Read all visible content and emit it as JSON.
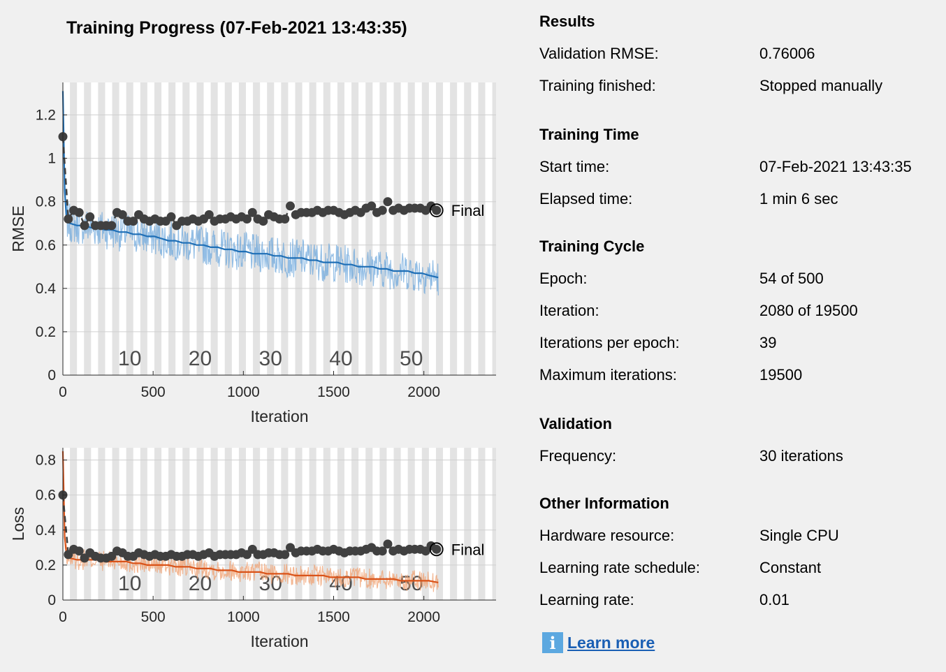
{
  "title": "Training Progress (07-Feb-2021 13:43:35)",
  "chart_data": [
    {
      "type": "line",
      "ylabel": "RMSE",
      "xlabel": "Iteration",
      "xlim": [
        0,
        2400
      ],
      "ylim": [
        0,
        1.35
      ],
      "xticks": [
        "0",
        "500",
        "1000",
        "1500",
        "2000"
      ],
      "yticks": [
        "0",
        "0.2",
        "0.4",
        "0.6",
        "0.8",
        "1",
        "1.2"
      ],
      "epoch_labels": [
        "10",
        "20",
        "30",
        "40",
        "50"
      ],
      "iterations_per_epoch": 39,
      "total_iterations": 2080,
      "final_label": "Final",
      "series": [
        {
          "role": "training-smoothed",
          "color": "#1f6fb6",
          "x": [
            0,
            10,
            20,
            39,
            78,
            117,
            156,
            195,
            234,
            273,
            312,
            351,
            390,
            429,
            468,
            507,
            546,
            585,
            624,
            663,
            702,
            741,
            780,
            819,
            858,
            897,
            936,
            975,
            1014,
            1053,
            1092,
            1131,
            1170,
            1209,
            1248,
            1287,
            1326,
            1365,
            1404,
            1443,
            1482,
            1521,
            1560,
            1599,
            1638,
            1677,
            1716,
            1755,
            1794,
            1833,
            1872,
            1911,
            1950,
            1989,
            2028,
            2080
          ],
          "y": [
            1.31,
            0.85,
            0.72,
            0.7,
            0.69,
            0.69,
            0.68,
            0.68,
            0.67,
            0.67,
            0.66,
            0.66,
            0.65,
            0.65,
            0.64,
            0.64,
            0.63,
            0.62,
            0.62,
            0.61,
            0.61,
            0.6,
            0.6,
            0.59,
            0.59,
            0.58,
            0.58,
            0.57,
            0.57,
            0.56,
            0.56,
            0.56,
            0.55,
            0.55,
            0.54,
            0.54,
            0.54,
            0.53,
            0.53,
            0.52,
            0.52,
            0.52,
            0.51,
            0.51,
            0.5,
            0.5,
            0.5,
            0.49,
            0.49,
            0.48,
            0.48,
            0.48,
            0.47,
            0.47,
            0.46,
            0.45
          ]
        },
        {
          "role": "validation",
          "color": "#404040",
          "x": [
            0,
            30,
            60,
            90,
            120,
            150,
            180,
            210,
            240,
            270,
            300,
            330,
            360,
            390,
            420,
            450,
            480,
            510,
            540,
            570,
            600,
            630,
            660,
            690,
            720,
            750,
            780,
            810,
            840,
            870,
            900,
            930,
            960,
            990,
            1020,
            1050,
            1080,
            1110,
            1140,
            1170,
            1200,
            1230,
            1260,
            1290,
            1320,
            1350,
            1380,
            1410,
            1440,
            1470,
            1500,
            1530,
            1560,
            1590,
            1620,
            1650,
            1680,
            1710,
            1740,
            1770,
            1800,
            1830,
            1860,
            1890,
            1920,
            1950,
            1980,
            2010,
            2040,
            2070
          ],
          "y": [
            1.1,
            0.72,
            0.76,
            0.75,
            0.69,
            0.73,
            0.69,
            0.69,
            0.69,
            0.69,
            0.75,
            0.74,
            0.71,
            0.71,
            0.74,
            0.72,
            0.71,
            0.72,
            0.71,
            0.71,
            0.73,
            0.69,
            0.71,
            0.71,
            0.72,
            0.71,
            0.72,
            0.74,
            0.71,
            0.72,
            0.72,
            0.73,
            0.72,
            0.73,
            0.72,
            0.75,
            0.72,
            0.71,
            0.74,
            0.73,
            0.72,
            0.72,
            0.78,
            0.74,
            0.75,
            0.75,
            0.75,
            0.76,
            0.75,
            0.76,
            0.76,
            0.75,
            0.74,
            0.75,
            0.76,
            0.75,
            0.77,
            0.78,
            0.75,
            0.76,
            0.8,
            0.76,
            0.77,
            0.76,
            0.77,
            0.77,
            0.77,
            0.76,
            0.78,
            0.76
          ]
        }
      ],
      "final_value": 0.76006
    },
    {
      "type": "line",
      "ylabel": "Loss",
      "xlabel": "Iteration",
      "xlim": [
        0,
        2400
      ],
      "ylim": [
        0,
        0.87
      ],
      "xticks": [
        "0",
        "500",
        "1000",
        "1500",
        "2000"
      ],
      "yticks": [
        "0",
        "0.2",
        "0.4",
        "0.6",
        "0.8"
      ],
      "epoch_labels": [
        "10",
        "20",
        "30",
        "40",
        "50"
      ],
      "iterations_per_epoch": 39,
      "total_iterations": 2080,
      "final_label": "Final",
      "series": [
        {
          "role": "training-smoothed",
          "color": "#d95319",
          "x": [
            0,
            10,
            20,
            39,
            78,
            117,
            156,
            195,
            234,
            273,
            312,
            351,
            390,
            429,
            468,
            507,
            546,
            585,
            624,
            663,
            702,
            741,
            780,
            819,
            858,
            897,
            936,
            975,
            1014,
            1053,
            1092,
            1131,
            1170,
            1209,
            1248,
            1287,
            1326,
            1365,
            1404,
            1443,
            1482,
            1521,
            1560,
            1599,
            1638,
            1677,
            1716,
            1755,
            1794,
            1833,
            1872,
            1911,
            1950,
            1989,
            2028,
            2080
          ],
          "y": [
            0.85,
            0.36,
            0.26,
            0.24,
            0.23,
            0.23,
            0.23,
            0.23,
            0.22,
            0.22,
            0.22,
            0.22,
            0.21,
            0.21,
            0.2,
            0.2,
            0.2,
            0.2,
            0.19,
            0.19,
            0.19,
            0.18,
            0.18,
            0.18,
            0.17,
            0.17,
            0.17,
            0.16,
            0.16,
            0.16,
            0.16,
            0.15,
            0.15,
            0.15,
            0.15,
            0.14,
            0.14,
            0.14,
            0.14,
            0.14,
            0.13,
            0.13,
            0.13,
            0.13,
            0.13,
            0.12,
            0.12,
            0.12,
            0.12,
            0.12,
            0.11,
            0.11,
            0.11,
            0.11,
            0.11,
            0.1
          ]
        },
        {
          "role": "validation",
          "color": "#404040",
          "x": [
            0,
            30,
            60,
            90,
            120,
            150,
            180,
            210,
            240,
            270,
            300,
            330,
            360,
            390,
            420,
            450,
            480,
            510,
            540,
            570,
            600,
            630,
            660,
            690,
            720,
            750,
            780,
            810,
            840,
            870,
            900,
            930,
            960,
            990,
            1020,
            1050,
            1080,
            1110,
            1140,
            1170,
            1200,
            1230,
            1260,
            1290,
            1320,
            1350,
            1380,
            1410,
            1440,
            1470,
            1500,
            1530,
            1560,
            1590,
            1620,
            1650,
            1680,
            1710,
            1740,
            1770,
            1800,
            1830,
            1860,
            1890,
            1920,
            1950,
            1980,
            2010,
            2040,
            2070
          ],
          "y": [
            0.6,
            0.26,
            0.29,
            0.28,
            0.24,
            0.27,
            0.25,
            0.24,
            0.24,
            0.25,
            0.28,
            0.27,
            0.25,
            0.25,
            0.27,
            0.26,
            0.25,
            0.26,
            0.25,
            0.25,
            0.26,
            0.25,
            0.25,
            0.26,
            0.26,
            0.25,
            0.26,
            0.27,
            0.25,
            0.26,
            0.26,
            0.26,
            0.26,
            0.27,
            0.26,
            0.29,
            0.26,
            0.26,
            0.27,
            0.27,
            0.26,
            0.26,
            0.3,
            0.27,
            0.28,
            0.28,
            0.28,
            0.29,
            0.28,
            0.28,
            0.29,
            0.28,
            0.27,
            0.28,
            0.28,
            0.28,
            0.29,
            0.3,
            0.28,
            0.28,
            0.32,
            0.28,
            0.29,
            0.28,
            0.29,
            0.29,
            0.29,
            0.28,
            0.31,
            0.29
          ]
        }
      ],
      "final_value": 0.29
    }
  ],
  "info": {
    "results": {
      "header": "Results",
      "rows": [
        {
          "key": "Validation RMSE:",
          "value": "0.76006"
        },
        {
          "key": "Training finished:",
          "value": "Stopped manually"
        }
      ]
    },
    "training_time": {
      "header": "Training Time",
      "rows": [
        {
          "key": "Start time:",
          "value": "07-Feb-2021 13:43:35"
        },
        {
          "key": "Elapsed time:",
          "value": "1 min 6 sec"
        }
      ]
    },
    "training_cycle": {
      "header": "Training Cycle",
      "rows": [
        {
          "key": "Epoch:",
          "value": "54 of 500"
        },
        {
          "key": "Iteration:",
          "value": "2080 of 19500"
        },
        {
          "key": "Iterations per epoch:",
          "value": "39"
        },
        {
          "key": "Maximum iterations:",
          "value": "19500"
        }
      ]
    },
    "validation": {
      "header": "Validation",
      "rows": [
        {
          "key": "Frequency:",
          "value": "30 iterations"
        }
      ]
    },
    "other_information": {
      "header": "Other Information",
      "rows": [
        {
          "key": "Hardware resource:",
          "value": "Single CPU"
        },
        {
          "key": "Learning rate schedule:",
          "value": "Constant"
        },
        {
          "key": "Learning rate:",
          "value": "0.01"
        }
      ]
    }
  },
  "learn_more": {
    "icon": "info-icon",
    "label": "Learn more"
  }
}
